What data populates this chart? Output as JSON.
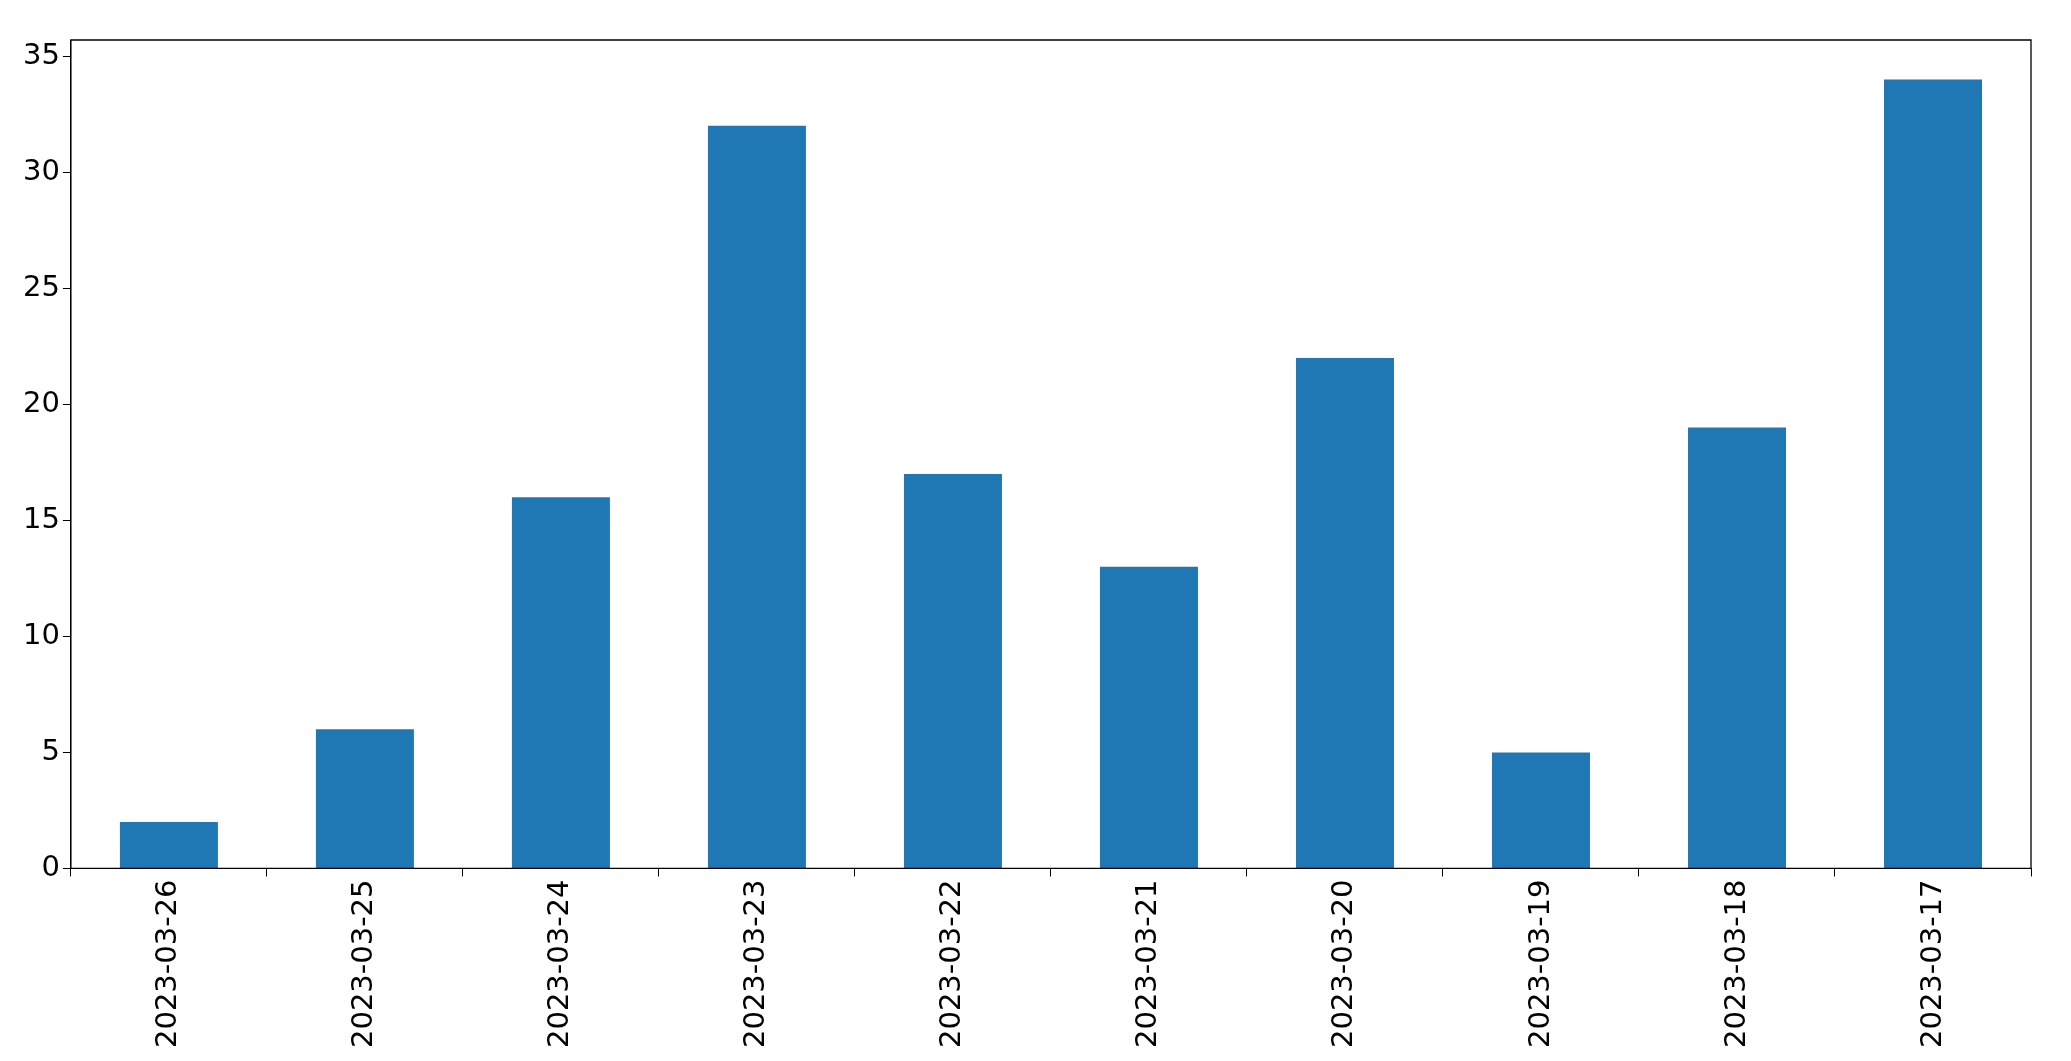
{
  "chart_data": {
    "type": "bar",
    "categories": [
      "2023-03-26",
      "2023-03-25",
      "2023-03-24",
      "2023-03-23",
      "2023-03-22",
      "2023-03-21",
      "2023-03-20",
      "2023-03-19",
      "2023-03-18",
      "2023-03-17"
    ],
    "values": [
      2,
      6,
      16,
      32,
      17,
      13,
      22,
      5,
      19,
      34
    ],
    "color": "#1f77b4",
    "ylim": [
      0,
      35.7
    ],
    "yticks": [
      0,
      5,
      10,
      15,
      20,
      25,
      30,
      35
    ],
    "grid": false,
    "legend": false
  }
}
